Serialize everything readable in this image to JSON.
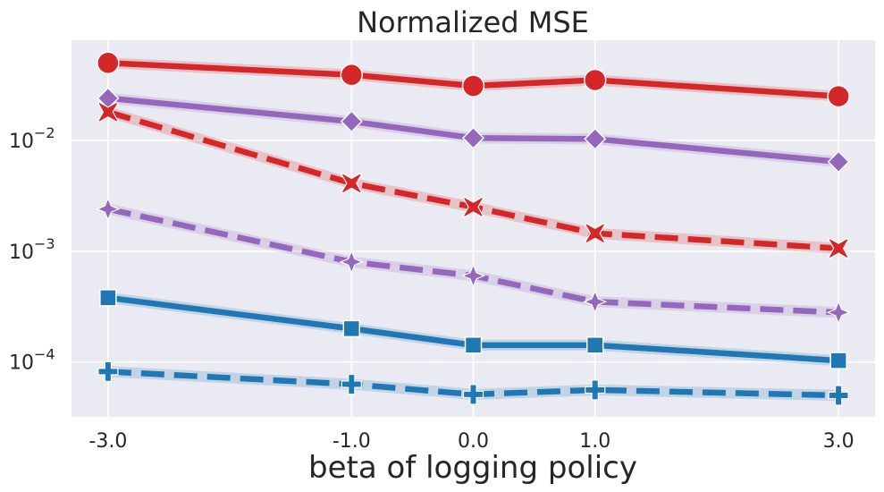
{
  "chart_data": {
    "type": "line",
    "title": "Normalized MSE",
    "xlabel": "beta of logging policy",
    "ylabel": "",
    "yscale": "log",
    "xlim": [
      -3.3,
      3.3
    ],
    "ylim": [
      3.2e-05,
      0.08
    ],
    "grid": true,
    "legend": "none",
    "x": [
      -3.0,
      -1.0,
      0.0,
      1.0,
      3.0
    ],
    "x_tick_labels": [
      "-3.0",
      "-1.0",
      "0.0",
      "1.0",
      "3.0"
    ],
    "y_ticks": [
      0.0001,
      0.001,
      0.01
    ],
    "y_tick_labels": [
      {
        "base": "10",
        "exp": "−4"
      },
      {
        "base": "10",
        "exp": "−3"
      },
      {
        "base": "10",
        "exp": "−2"
      }
    ],
    "series": [
      {
        "color": "#d62728",
        "dashed": false,
        "marker": "circle",
        "values": [
          0.05,
          0.039,
          0.031,
          0.035,
          0.025
        ]
      },
      {
        "color": "#9467bd",
        "dashed": false,
        "marker": "diamond",
        "values": [
          0.024,
          0.0148,
          0.0105,
          0.0103,
          0.0064
        ]
      },
      {
        "color": "#d62728",
        "dashed": true,
        "marker": "x",
        "values": [
          0.018,
          0.0041,
          0.0025,
          0.00145,
          0.00106
        ]
      },
      {
        "color": "#9467bd",
        "dashed": true,
        "marker": "star4",
        "values": [
          0.0024,
          0.0008,
          0.0006,
          0.00035,
          0.00028
        ]
      },
      {
        "color": "#1f77b4",
        "dashed": false,
        "marker": "square",
        "values": [
          0.00038,
          0.0002,
          0.000142,
          0.000142,
          0.000103
        ]
      },
      {
        "color": "#1f77b4",
        "dashed": true,
        "marker": "plus",
        "values": [
          8.2e-05,
          6.3e-05,
          5.1e-05,
          5.6e-05,
          5e-05
        ]
      }
    ],
    "colors": {
      "background": "#eaeaf2",
      "grid": "#ffffff"
    }
  }
}
